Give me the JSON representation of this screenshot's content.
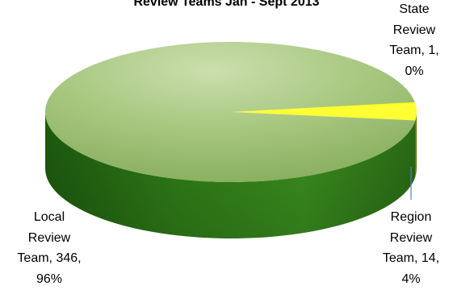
{
  "chart_data": {
    "type": "pie",
    "title": "Review Teams Jan - Sept 2013",
    "slices": [
      {
        "name": "State Review Team",
        "value": 1,
        "percent": "0%",
        "color": "#ffff00",
        "label_lines": [
          "State",
          "Review",
          "Team, 1,",
          "0%"
        ]
      },
      {
        "name": "Region Review Team",
        "value": 14,
        "percent": "4%",
        "color": "#ffff33",
        "label_lines": [
          "Region",
          "Review",
          "Team, 14,",
          "4%"
        ]
      },
      {
        "name": "Local Review Team",
        "value": 346,
        "percent": "96%",
        "color": "#3f8f1f",
        "label_lines": [
          "Local",
          "Review",
          "Team, 346,",
          "96%"
        ]
      }
    ],
    "legend": "none",
    "style": "3d"
  }
}
